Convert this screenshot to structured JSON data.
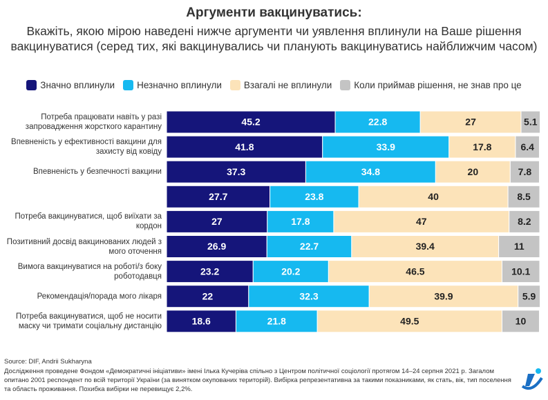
{
  "chart_data": {
    "type": "stacked-bar-horizontal",
    "title": "Аргументи вакцинуватись:",
    "subtitle": "Вкажіть, якою мірою наведені нижче аргументи чи уявлення вплинули на Ваше рішення вакцинуватися (серед тих, які вакцинувались чи планують вакцинуватись найближчим часом)",
    "categories": [
      "Потреба працювати навіть у разі запровадження жорсткого карантину",
      "Впевненість у ефективності вакцини для захисту від ковіду",
      "Впевненість у безпечності вакцини",
      null,
      "Потреба вакцинуватися, щоб виїхати за кордон",
      "Позитивний досвід вакцинованих людей з мого оточення",
      "Вимога вакцинуватися на роботі/з боку роботодавця",
      "Рекомендація/порада мого лікаря",
      "Потреба вакцинуватися, щоб не носити маску чи тримати соціальну дистанцію"
    ],
    "series": [
      {
        "name": "Значно вплинули",
        "color": "#15157a",
        "values": [
          45.2,
          41.8,
          37.3,
          27.7,
          27,
          26.9,
          23.2,
          22,
          18.6
        ]
      },
      {
        "name": "Незначно вплинули",
        "color": "#16b9f0",
        "values": [
          22.8,
          33.9,
          34.8,
          23.8,
          17.8,
          22.7,
          20.2,
          32.3,
          21.8
        ]
      },
      {
        "name": "Взагалі не вплинули",
        "color": "#fce3b9",
        "values": [
          27,
          17.8,
          20,
          40,
          47,
          39.4,
          46.5,
          39.9,
          49.5
        ]
      },
      {
        "name": "Коли приймав рішення, не знав про це",
        "color": "#c4c4c4",
        "values": [
          5.1,
          6.4,
          7.8,
          8.5,
          8.2,
          11,
          10.1,
          5.9,
          10
        ]
      }
    ],
    "xlim": [
      0,
      100
    ],
    "source": "Source: DIF, Andrii Sukharyna",
    "note": "Дослідження проведене Фондом «Демократичні ініціативи» імені Ілька Кучеріва спільно з Центром політичної соціології протягом 14–24 серпня 2021 р. Загалом опитано 2001 респондент по всій території України (за винятком окупованих територій). Вибірка репрезентативна за такими показниками, як стать, вік, тип поселення та область проживання. Похибка вибірки не перевищує 2,2%."
  }
}
